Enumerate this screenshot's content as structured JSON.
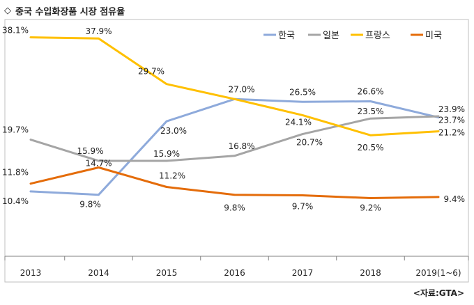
{
  "title": "중국 수입화장품 시장 점유율",
  "title_icon": "diamond-icon",
  "source": "<자료:GTA>",
  "chart_data": {
    "type": "line",
    "categories": [
      "2013",
      "2014",
      "2015",
      "2016",
      "2017",
      "2018",
      "2019(1~6)"
    ],
    "series": [
      {
        "name": "한국",
        "color": "#8eaadb",
        "values": [
          10.4,
          9.8,
          23.0,
          27.0,
          26.5,
          26.6,
          23.7
        ],
        "labels": [
          "10.4%",
          "9.8%",
          "23.0%",
          "27.0%",
          "26.5%",
          "26.6%",
          "23.7%"
        ]
      },
      {
        "name": "일본",
        "color": "#a5a5a5",
        "values": [
          19.7,
          15.9,
          15.9,
          16.8,
          20.7,
          23.5,
          23.9
        ],
        "labels": [
          "19.7%",
          "15.9%",
          "15.9%",
          "16.8%",
          "20.7%",
          "23.5%",
          "23.9%"
        ]
      },
      {
        "name": "프랑스",
        "color": "#ffc000",
        "values": [
          38.1,
          37.9,
          29.7,
          27.0,
          24.1,
          20.5,
          21.2
        ],
        "labels": [
          "38.1%",
          "37.9%",
          "29.7%",
          "",
          "24.1%",
          "20.5%",
          "21.2%"
        ]
      },
      {
        "name": "미국",
        "color": "#e46c0a",
        "values": [
          11.8,
          14.7,
          11.2,
          9.8,
          9.7,
          9.2,
          9.4
        ],
        "labels": [
          "11.8%",
          "14.7%",
          "11.2%",
          "9.8%",
          "9.7%",
          "9.2%",
          "9.4%"
        ]
      }
    ],
    "legend_position": "top-right",
    "grid": false
  }
}
